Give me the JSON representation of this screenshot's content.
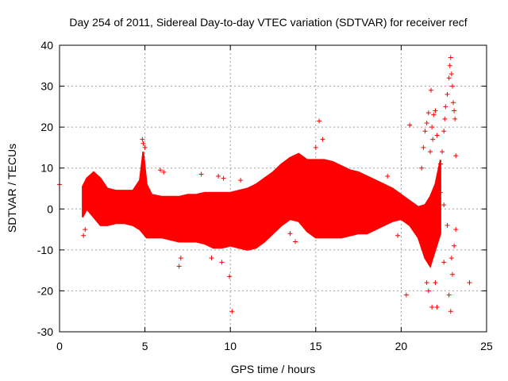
{
  "chart_data": {
    "type": "scatter",
    "title": "Day 254 of 2011, Sidereal Day-to-day VTEC variation (SDTVAR) for receiver recf",
    "xlabel": "GPS time / hours",
    "ylabel": "SDTVAR / TECUs",
    "xlim": [
      0,
      25
    ],
    "ylim": [
      -30,
      40
    ],
    "xticks": [
      0,
      5,
      10,
      15,
      20,
      25
    ],
    "yticks": [
      -30,
      -20,
      -10,
      0,
      10,
      20,
      30,
      40
    ],
    "grid": true,
    "marker": "+",
    "color": "#ff0000",
    "envelope": {
      "x": [
        1.35,
        1.6,
        2.0,
        2.4,
        2.8,
        3.3,
        3.8,
        4.3,
        4.7,
        4.9,
        5.1,
        5.4,
        6.0,
        6.5,
        7.0,
        7.5,
        8.0,
        8.5,
        9.0,
        9.5,
        10.0,
        10.5,
        11.0,
        11.5,
        12.0,
        12.5,
        13.0,
        13.5,
        14.0,
        14.5,
        15.0,
        15.5,
        16.0,
        16.5,
        17.0,
        17.5,
        18.0,
        18.5,
        19.0,
        19.5,
        20.0,
        20.5,
        21.0,
        21.4,
        21.7,
        22.0,
        22.3
      ],
      "upper": [
        5.5,
        7.5,
        9.0,
        7.5,
        5.0,
        4.5,
        4.5,
        4.5,
        7.0,
        14.0,
        6.0,
        3.5,
        3.0,
        3.0,
        3.0,
        3.5,
        3.5,
        4.0,
        4.0,
        4.0,
        4.0,
        4.5,
        5.0,
        6.0,
        7.5,
        9.0,
        11.0,
        12.5,
        13.5,
        12.0,
        12.0,
        12.0,
        11.5,
        10.5,
        9.5,
        9.0,
        8.0,
        7.0,
        6.0,
        5.0,
        3.5,
        2.0,
        0.5,
        1.0,
        3.0,
        6.0,
        12.0
      ],
      "lower": [
        -2.0,
        0.0,
        -2.0,
        -4.0,
        -4.0,
        -3.5,
        -3.5,
        -4.0,
        -5.0,
        -6.0,
        -7.0,
        -7.0,
        -7.0,
        -7.5,
        -8.0,
        -8.0,
        -8.0,
        -8.5,
        -9.5,
        -9.5,
        -9.0,
        -9.5,
        -10.0,
        -9.5,
        -8.0,
        -6.0,
        -4.0,
        -2.5,
        -3.0,
        -5.5,
        -7.0,
        -7.0,
        -7.0,
        -7.0,
        -6.5,
        -6.0,
        -6.0,
        -5.0,
        -4.0,
        -3.0,
        -2.5,
        -4.0,
        -7.0,
        -12.0,
        -14.0,
        -10.0,
        -6.0
      ]
    },
    "spikes": [
      {
        "x": 4.85,
        "y": 17.0
      },
      {
        "x": 4.9,
        "y": 16.0
      },
      {
        "x": 5.0,
        "y": 15.0
      },
      {
        "x": 5.9,
        "y": 9.5
      },
      {
        "x": 6.1,
        "y": 9.0
      },
      {
        "x": 7.0,
        "y": -14.0
      },
      {
        "x": 7.1,
        "y": -12.0
      },
      {
        "x": 8.3,
        "y": 8.5
      },
      {
        "x": 8.9,
        "y": -12.0
      },
      {
        "x": 9.3,
        "y": 8.0
      },
      {
        "x": 9.5,
        "y": -13.0
      },
      {
        "x": 9.6,
        "y": 7.5
      },
      {
        "x": 9.95,
        "y": -16.5
      },
      {
        "x": 10.1,
        "y": -25.0
      },
      {
        "x": 10.6,
        "y": 7.0
      },
      {
        "x": 13.5,
        "y": -6.0
      },
      {
        "x": 13.8,
        "y": -8.0
      },
      {
        "x": 15.0,
        "y": 15.0
      },
      {
        "x": 15.2,
        "y": 21.5
      },
      {
        "x": 15.4,
        "y": 17.0
      },
      {
        "x": 19.2,
        "y": 8.0
      },
      {
        "x": 19.8,
        "y": -6.5
      },
      {
        "x": 20.3,
        "y": -21.0
      },
      {
        "x": 20.5,
        "y": 20.5
      },
      {
        "x": 0.0,
        "y": 6.0
      },
      {
        "x": 1.4,
        "y": -6.5
      },
      {
        "x": 1.5,
        "y": -5.0
      },
      {
        "x": 21.2,
        "y": 10.0
      },
      {
        "x": 21.3,
        "y": 15.0
      },
      {
        "x": 21.4,
        "y": 19.0
      },
      {
        "x": 21.5,
        "y": 21.0
      },
      {
        "x": 21.6,
        "y": 23.5
      },
      {
        "x": 21.7,
        "y": 14.0
      },
      {
        "x": 21.75,
        "y": 29.0
      },
      {
        "x": 21.8,
        "y": 20.0
      },
      {
        "x": 21.85,
        "y": 17.0
      },
      {
        "x": 21.9,
        "y": 23.0
      },
      {
        "x": 22.0,
        "y": 24.0
      },
      {
        "x": 22.1,
        "y": 18.0
      },
      {
        "x": 22.2,
        "y": 8.0
      },
      {
        "x": 22.3,
        "y": 11.0
      },
      {
        "x": 22.4,
        "y": 14.0
      },
      {
        "x": 22.5,
        "y": 19.0
      },
      {
        "x": 22.55,
        "y": 22.0
      },
      {
        "x": 22.6,
        "y": 25.0
      },
      {
        "x": 22.7,
        "y": 28.0
      },
      {
        "x": 22.8,
        "y": 32.0
      },
      {
        "x": 22.85,
        "y": 35.0
      },
      {
        "x": 22.9,
        "y": 37.0
      },
      {
        "x": 22.95,
        "y": 33.0
      },
      {
        "x": 23.0,
        "y": 30.0
      },
      {
        "x": 23.05,
        "y": 26.0
      },
      {
        "x": 23.1,
        "y": 24.0
      },
      {
        "x": 23.15,
        "y": 22.0
      },
      {
        "x": 23.2,
        "y": 13.0
      },
      {
        "x": 21.5,
        "y": -18.0
      },
      {
        "x": 21.6,
        "y": -20.0
      },
      {
        "x": 21.8,
        "y": -24.0
      },
      {
        "x": 22.0,
        "y": -18.0
      },
      {
        "x": 22.1,
        "y": -24.0
      },
      {
        "x": 22.5,
        "y": -13.0
      },
      {
        "x": 22.8,
        "y": -21.0
      },
      {
        "x": 22.9,
        "y": -25.0
      },
      {
        "x": 22.95,
        "y": -12.0
      },
      {
        "x": 23.0,
        "y": -16.0
      },
      {
        "x": 23.1,
        "y": -9.0
      },
      {
        "x": 23.2,
        "y": -5.0
      },
      {
        "x": 24.0,
        "y": -18.0
      },
      {
        "x": 22.7,
        "y": -4.0
      },
      {
        "x": 22.5,
        "y": 1.0
      },
      {
        "x": 22.3,
        "y": 4.0
      }
    ]
  }
}
